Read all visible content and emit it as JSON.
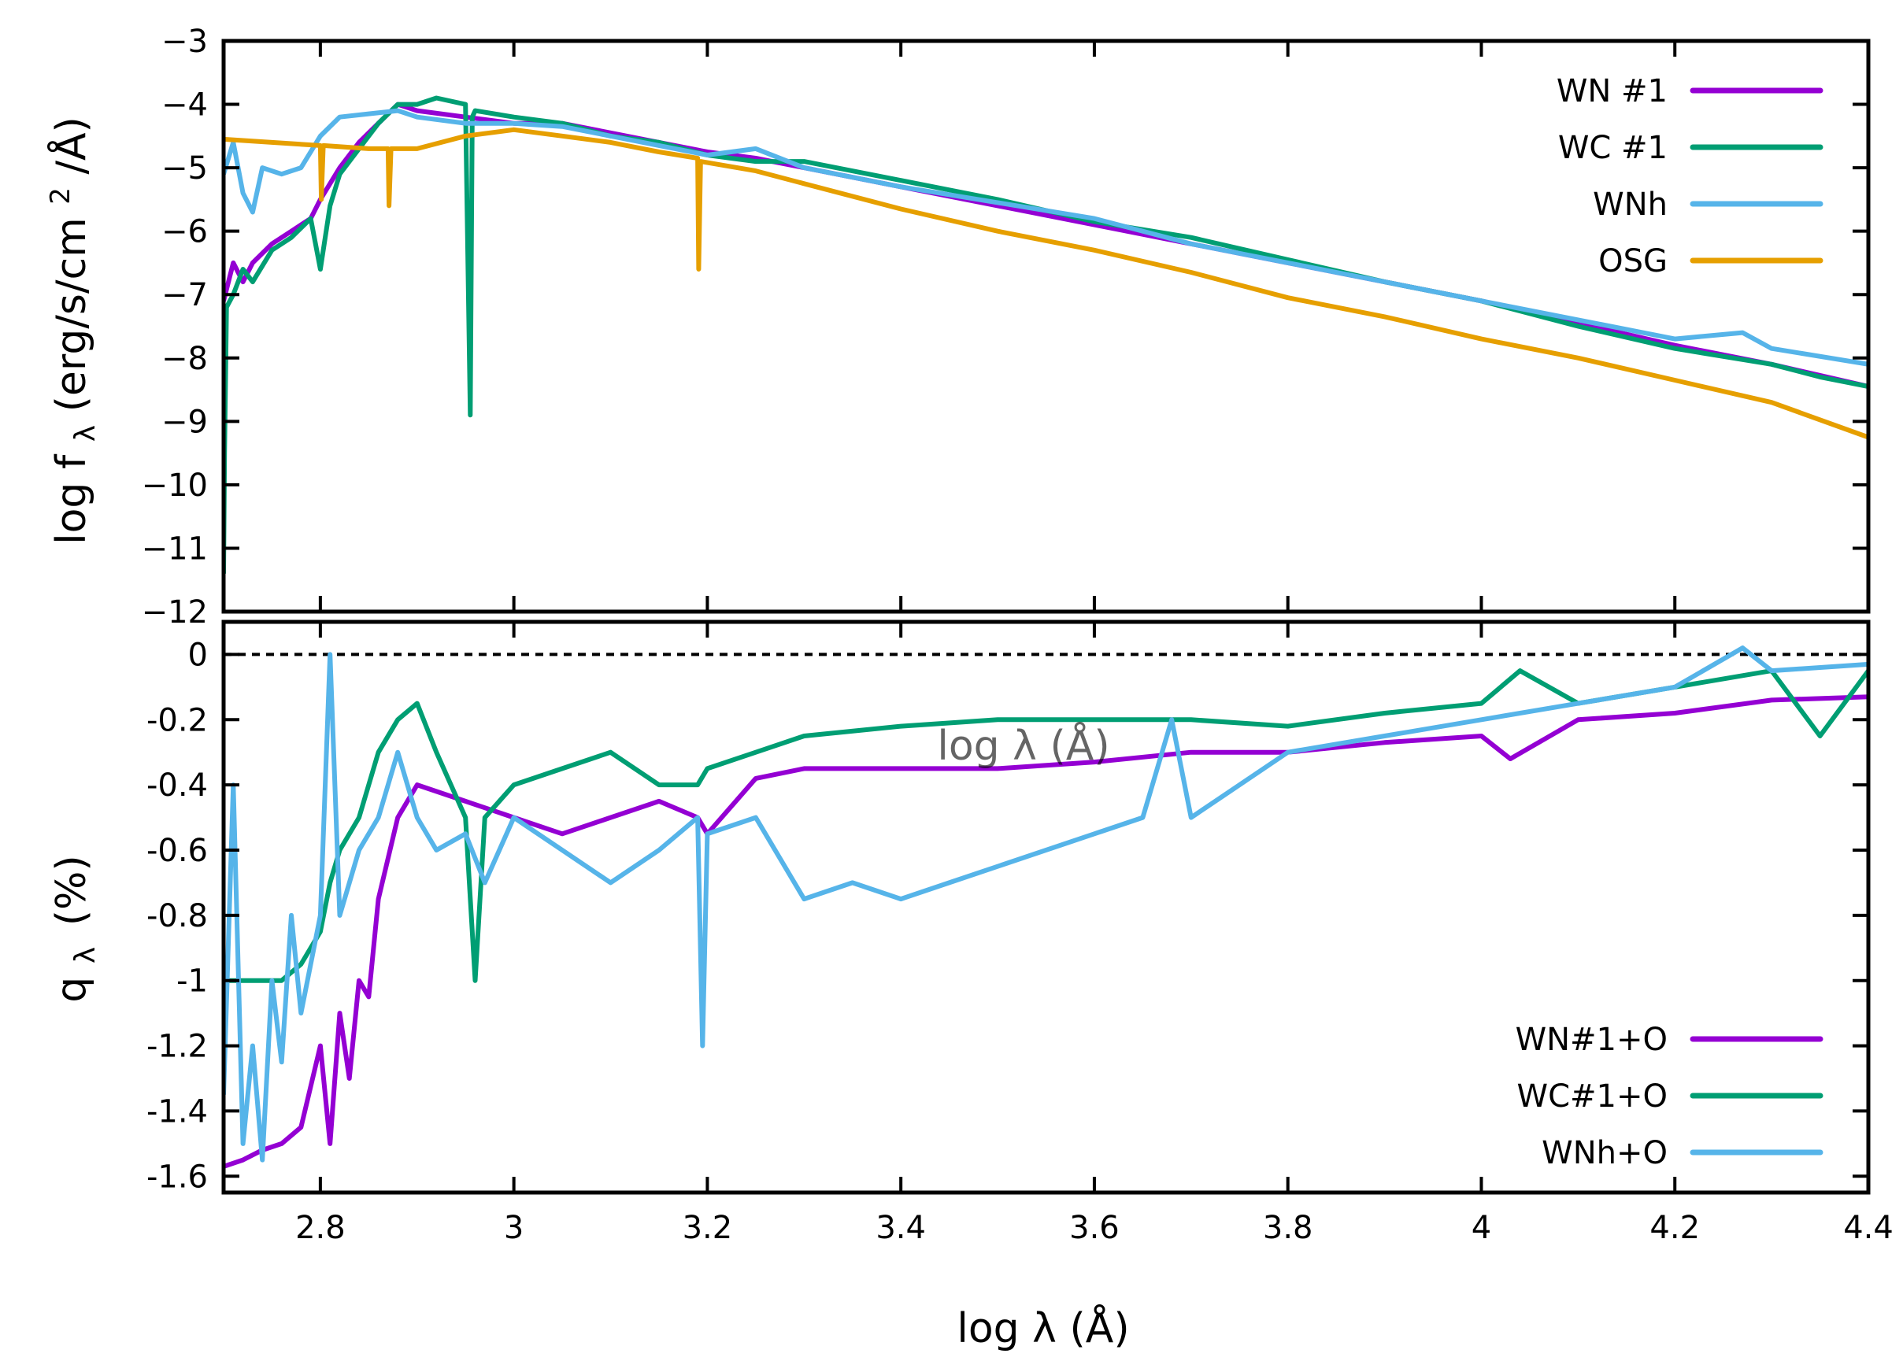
{
  "colors": {
    "wn": "#9400D3",
    "wc": "#009E73",
    "wnh": "#56B4E9",
    "osg": "#E69F00",
    "axis": "#000000",
    "zero_line": "#000000"
  },
  "chart_data": [
    {
      "id": "top",
      "type": "line",
      "ylabel": "log f",
      "ylabel_sub": "λ",
      "ylabel_units": "(erg/s/cm",
      "ylabel_sup": "2",
      "ylabel_units_end": "/Å)",
      "xlim": [
        2.7,
        4.4
      ],
      "ylim": [
        -12,
        -3
      ],
      "yticks": [
        {
          "v": -3,
          "label": "−3"
        },
        {
          "v": -4,
          "label": "−4"
        },
        {
          "v": -5,
          "label": "−5"
        },
        {
          "v": -6,
          "label": "−6"
        },
        {
          "v": -7,
          "label": "−7"
        },
        {
          "v": -8,
          "label": "−8"
        },
        {
          "v": -9,
          "label": "−9"
        },
        {
          "v": -10,
          "label": "−10"
        },
        {
          "v": -11,
          "label": "−11"
        },
        {
          "v": -12,
          "label": "−12"
        }
      ],
      "legend_position": "top-right",
      "series": [
        {
          "name": "WN #1",
          "color_key": "wn",
          "x": [
            2.7,
            2.71,
            2.72,
            2.73,
            2.75,
            2.77,
            2.79,
            2.8,
            2.82,
            2.84,
            2.86,
            2.88,
            2.9,
            2.95,
            3.0,
            3.05,
            3.1,
            3.15,
            3.2,
            3.25,
            3.3,
            3.4,
            3.5,
            3.6,
            3.7,
            3.8,
            3.9,
            4.0,
            4.1,
            4.2,
            4.3,
            4.4
          ],
          "y": [
            -7.1,
            -6.5,
            -6.8,
            -6.5,
            -6.2,
            -6.0,
            -5.8,
            -5.5,
            -5.0,
            -4.6,
            -4.3,
            -4.0,
            -4.1,
            -4.2,
            -4.3,
            -4.3,
            -4.45,
            -4.6,
            -4.75,
            -4.85,
            -5.0,
            -5.3,
            -5.6,
            -5.9,
            -6.2,
            -6.5,
            -6.8,
            -7.1,
            -7.45,
            -7.8,
            -8.1,
            -8.45
          ]
        },
        {
          "name": "WC #1",
          "color_key": "wc",
          "x": [
            2.7,
            2.701,
            2.703,
            2.71,
            2.72,
            2.73,
            2.75,
            2.77,
            2.79,
            2.8,
            2.81,
            2.82,
            2.84,
            2.86,
            2.88,
            2.9,
            2.92,
            2.95,
            2.955,
            2.957,
            2.96,
            3.0,
            3.05,
            3.1,
            3.15,
            3.2,
            3.25,
            3.3,
            3.4,
            3.5,
            3.6,
            3.7,
            3.8,
            3.9,
            4.0,
            4.1,
            4.2,
            4.3,
            4.35,
            4.4
          ],
          "y": [
            -11.4,
            -9.5,
            -7.2,
            -7.0,
            -6.6,
            -6.8,
            -6.3,
            -6.1,
            -5.8,
            -6.6,
            -5.6,
            -5.1,
            -4.7,
            -4.3,
            -4.0,
            -4.0,
            -3.9,
            -4.0,
            -8.9,
            -4.2,
            -4.1,
            -4.2,
            -4.3,
            -4.5,
            -4.6,
            -4.8,
            -4.9,
            -4.9,
            -5.2,
            -5.5,
            -5.85,
            -6.1,
            -6.45,
            -6.8,
            -7.1,
            -7.5,
            -7.85,
            -8.1,
            -8.3,
            -8.45
          ]
        },
        {
          "name": "WNh",
          "color_key": "wnh",
          "x": [
            2.7,
            2.71,
            2.72,
            2.73,
            2.74,
            2.76,
            2.78,
            2.8,
            2.82,
            2.85,
            2.88,
            2.9,
            2.95,
            3.0,
            3.05,
            3.1,
            3.15,
            3.2,
            3.25,
            3.3,
            3.4,
            3.5,
            3.6,
            3.7,
            3.8,
            3.9,
            4.0,
            4.1,
            4.2,
            4.27,
            4.3,
            4.4
          ],
          "y": [
            -5.1,
            -4.6,
            -5.4,
            -5.7,
            -5.0,
            -5.1,
            -5.0,
            -4.5,
            -4.2,
            -4.15,
            -4.1,
            -4.2,
            -4.3,
            -4.3,
            -4.35,
            -4.5,
            -4.65,
            -4.8,
            -4.7,
            -5.0,
            -5.3,
            -5.55,
            -5.8,
            -6.2,
            -6.5,
            -6.8,
            -7.1,
            -7.4,
            -7.7,
            -7.6,
            -7.85,
            -8.1
          ]
        },
        {
          "name": "OSG",
          "color_key": "osg",
          "x": [
            2.7,
            2.75,
            2.8,
            2.801,
            2.803,
            2.85,
            2.87,
            2.871,
            2.873,
            2.9,
            2.95,
            3.0,
            3.05,
            3.1,
            3.15,
            3.19,
            3.191,
            3.193,
            3.25,
            3.3,
            3.4,
            3.5,
            3.6,
            3.7,
            3.8,
            3.9,
            4.0,
            4.1,
            4.2,
            4.3,
            4.4
          ],
          "y": [
            -4.55,
            -4.6,
            -4.65,
            -5.5,
            -4.65,
            -4.7,
            -4.7,
            -5.6,
            -4.7,
            -4.7,
            -4.5,
            -4.4,
            -4.5,
            -4.6,
            -4.75,
            -4.85,
            -6.6,
            -4.9,
            -5.05,
            -5.25,
            -5.65,
            -6.0,
            -6.3,
            -6.65,
            -7.05,
            -7.35,
            -7.7,
            -8.0,
            -8.35,
            -8.7,
            -9.25
          ]
        }
      ]
    },
    {
      "id": "bottom",
      "type": "line",
      "ylabel": "q",
      "ylabel_sub": "λ",
      "ylabel_units": "(%)",
      "xlabel": "log λ (Å)",
      "xlim": [
        2.7,
        4.4
      ],
      "ylim": [
        -1.65,
        0.1
      ],
      "xticks": [
        {
          "v": 2.8,
          "label": "2.8"
        },
        {
          "v": 3.0,
          "label": "3"
        },
        {
          "v": 3.2,
          "label": "3.2"
        },
        {
          "v": 3.4,
          "label": "3.4"
        },
        {
          "v": 3.6,
          "label": "3.6"
        },
        {
          "v": 3.8,
          "label": "3.8"
        },
        {
          "v": 4.0,
          "label": "4"
        },
        {
          "v": 4.2,
          "label": "4.2"
        },
        {
          "v": 4.4,
          "label": "4.4"
        }
      ],
      "yticks": [
        {
          "v": 0,
          "label": "0"
        },
        {
          "v": -0.2,
          "label": "-0.2"
        },
        {
          "v": -0.4,
          "label": "-0.4"
        },
        {
          "v": -0.6,
          "label": "-0.6"
        },
        {
          "v": -0.8,
          "label": "-0.8"
        },
        {
          "v": -1.0,
          "label": "-1"
        },
        {
          "v": -1.2,
          "label": "-1.2"
        },
        {
          "v": -1.4,
          "label": "-1.4"
        },
        {
          "v": -1.6,
          "label": "-1.6"
        }
      ],
      "legend_position": "bottom-right",
      "series": [
        {
          "name": "WN#1+O",
          "color_key": "wn",
          "x": [
            2.7,
            2.72,
            2.74,
            2.76,
            2.78,
            2.8,
            2.81,
            2.82,
            2.83,
            2.84,
            2.85,
            2.86,
            2.88,
            2.9,
            2.95,
            3.0,
            3.05,
            3.1,
            3.15,
            3.19,
            3.2,
            3.25,
            3.3,
            3.4,
            3.5,
            3.6,
            3.7,
            3.8,
            3.9,
            4.0,
            4.03,
            4.1,
            4.2,
            4.3,
            4.4
          ],
          "y": [
            -1.57,
            -1.55,
            -1.52,
            -1.5,
            -1.45,
            -1.2,
            -1.5,
            -1.1,
            -1.3,
            -1.0,
            -1.05,
            -0.75,
            -0.5,
            -0.4,
            -0.45,
            -0.5,
            -0.55,
            -0.5,
            -0.45,
            -0.5,
            -0.55,
            -0.38,
            -0.35,
            -0.35,
            -0.35,
            -0.33,
            -0.3,
            -0.3,
            -0.27,
            -0.25,
            -0.32,
            -0.2,
            -0.18,
            -0.14,
            -0.13
          ]
        },
        {
          "name": "WC#1+O",
          "color_key": "wc",
          "x": [
            2.7,
            2.72,
            2.74,
            2.76,
            2.78,
            2.8,
            2.81,
            2.82,
            2.84,
            2.86,
            2.88,
            2.9,
            2.92,
            2.95,
            2.96,
            2.97,
            3.0,
            3.05,
            3.1,
            3.15,
            3.19,
            3.2,
            3.25,
            3.3,
            3.4,
            3.5,
            3.6,
            3.7,
            3.8,
            3.9,
            4.0,
            4.04,
            4.1,
            4.2,
            4.3,
            4.35,
            4.4
          ],
          "y": [
            -1.0,
            -1.0,
            -1.0,
            -1.0,
            -0.95,
            -0.85,
            -0.7,
            -0.6,
            -0.5,
            -0.3,
            -0.2,
            -0.15,
            -0.3,
            -0.5,
            -1.0,
            -0.5,
            -0.4,
            -0.35,
            -0.3,
            -0.4,
            -0.4,
            -0.35,
            -0.3,
            -0.25,
            -0.22,
            -0.2,
            -0.2,
            -0.2,
            -0.22,
            -0.18,
            -0.15,
            -0.05,
            -0.15,
            -0.1,
            -0.05,
            -0.25,
            -0.05
          ]
        },
        {
          "name": "WNh+O",
          "color_key": "wnh",
          "x": [
            2.7,
            2.71,
            2.72,
            2.73,
            2.74,
            2.75,
            2.76,
            2.77,
            2.78,
            2.8,
            2.81,
            2.82,
            2.84,
            2.86,
            2.88,
            2.9,
            2.92,
            2.95,
            2.97,
            3.0,
            3.05,
            3.1,
            3.15,
            3.19,
            3.195,
            3.2,
            3.25,
            3.3,
            3.35,
            3.4,
            3.45,
            3.5,
            3.6,
            3.65,
            3.68,
            3.7,
            3.8,
            3.9,
            4.0,
            4.1,
            4.2,
            4.27,
            4.3,
            4.4
          ],
          "y": [
            -1.35,
            -0.4,
            -1.5,
            -1.2,
            -1.55,
            -1.0,
            -1.25,
            -0.8,
            -1.1,
            -0.8,
            0.0,
            -0.8,
            -0.6,
            -0.5,
            -0.3,
            -0.5,
            -0.6,
            -0.55,
            -0.7,
            -0.5,
            -0.6,
            -0.7,
            -0.6,
            -0.5,
            -1.2,
            -0.55,
            -0.5,
            -0.75,
            -0.7,
            -0.75,
            -0.7,
            -0.65,
            -0.55,
            -0.5,
            -0.2,
            -0.5,
            -0.3,
            -0.25,
            -0.2,
            -0.15,
            -0.1,
            0.02,
            -0.05,
            -0.03
          ]
        }
      ]
    }
  ],
  "stray_label": "log λ (Å)"
}
